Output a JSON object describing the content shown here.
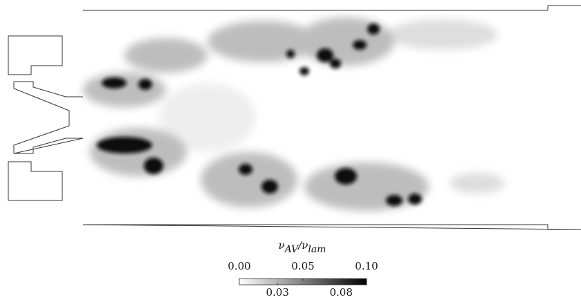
{
  "chart_data": {
    "type": "contour",
    "colorbar": {
      "label_parts": [
        "ν",
        "AV",
        "/ν",
        "lam"
      ],
      "lim": [
        0,
        0.1
      ],
      "ticks_top": [
        {
          "value": 0,
          "label": "0.00"
        },
        0.05,
        {
          "value": 0.1,
          "label": "0.10"
        }
      ],
      "ticks_bottom": [
        0.03,
        0.08
      ],
      "colormap": [
        "#ffffff",
        "#000000"
      ]
    }
  }
}
